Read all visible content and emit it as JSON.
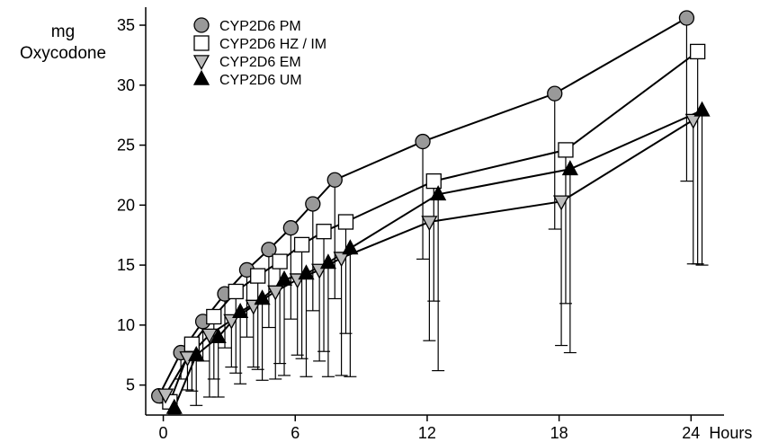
{
  "chart_data": {
    "type": "line",
    "ylabel_line1": "mg",
    "ylabel_line2": "Oxycodone",
    "xlabel": "Hours",
    "x_tick_labels": [
      "0",
      "6",
      "12",
      "18",
      "24"
    ],
    "y_tick_labels": [
      "5",
      "10",
      "15",
      "20",
      "25",
      "30",
      "35"
    ],
    "xlim": [
      -0.8,
      25.5
    ],
    "ylim": [
      2.5,
      36.5
    ],
    "legend_position": "top-left",
    "series": [
      {
        "name": "CYP2D6 PM",
        "marker": "circle",
        "color": "#999999",
        "x": [
          -0.2,
          0.8,
          1.8,
          2.8,
          3.8,
          4.8,
          5.8,
          6.8,
          7.8,
          11.8,
          17.8,
          23.8
        ],
        "y": [
          4.1,
          7.7,
          10.3,
          12.6,
          14.6,
          16.3,
          18.1,
          20.1,
          22.1,
          25.3,
          29.3,
          35.6
        ],
        "error_low": [
          3.8,
          5.5,
          7.0,
          8.1,
          9.0,
          9.8,
          10.5,
          11.2,
          12.2,
          15.5,
          18.0,
          22.0
        ]
      },
      {
        "name": "CYP2D6 HZ / IM",
        "marker": "square",
        "color": "#ffffff",
        "x": [
          0.3,
          1.3,
          2.3,
          3.3,
          4.3,
          5.3,
          6.3,
          7.3,
          8.3,
          12.3,
          18.3,
          24.3
        ],
        "y": [
          3.6,
          8.4,
          10.7,
          12.8,
          14.1,
          15.3,
          16.7,
          17.8,
          18.6,
          22.0,
          24.6,
          32.8
        ],
        "error_low": [
          3.2,
          4.5,
          5.5,
          6.0,
          6.3,
          6.8,
          7.2,
          7.8,
          9.3,
          12.0,
          11.8,
          15.1
        ]
      },
      {
        "name": "CYP2D6 EM",
        "marker": "triangle-down",
        "color": "#bbbbbb",
        "x": [
          0.1,
          1.1,
          2.1,
          3.1,
          4.1,
          5.1,
          6.1,
          7.1,
          8.1,
          12.1,
          18.1,
          24.1
        ],
        "y": [
          4.2,
          7.3,
          9.2,
          10.4,
          11.6,
          12.8,
          13.8,
          14.6,
          15.6,
          18.6,
          20.3,
          27.1
        ],
        "error_low": [
          3.5,
          4.6,
          4.0,
          6.5,
          6.5,
          5.5,
          7.5,
          7.0,
          5.8,
          8.7,
          8.3,
          15.1
        ]
      },
      {
        "name": "CYP2D6 UM",
        "marker": "triangle-up",
        "color": "#000000",
        "x": [
          0.5,
          1.5,
          2.5,
          3.5,
          4.5,
          5.5,
          6.5,
          7.5,
          8.5,
          12.5,
          18.5,
          24.5
        ],
        "y": [
          3.1,
          7.5,
          9.0,
          11.1,
          12.2,
          13.8,
          14.3,
          15.2,
          16.4,
          20.9,
          23.0,
          27.9
        ],
        "error_low": [
          2.6,
          3.3,
          4.0,
          5.1,
          5.4,
          5.8,
          5.7,
          5.7,
          5.7,
          6.2,
          7.7,
          15.0
        ]
      }
    ]
  }
}
